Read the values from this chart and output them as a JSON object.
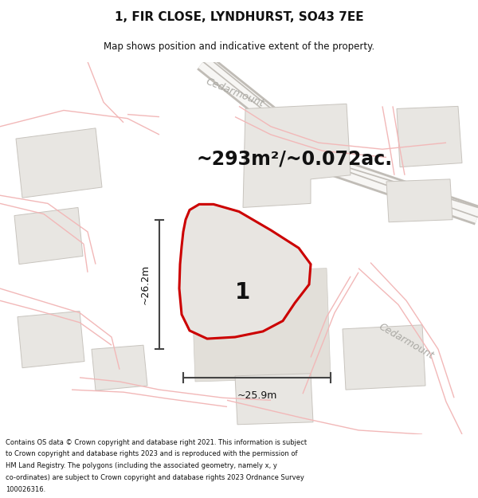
{
  "title": "1, FIR CLOSE, LYNDHURST, SO43 7EE",
  "subtitle": "Map shows position and indicative extent of the property.",
  "area_text": "~293m²/~0.072ac.",
  "dim_h": "~25.9m",
  "dim_v": "~26.2m",
  "prop_label": "1",
  "street_tl": "Cedarmount",
  "street_br": "Cedarmount",
  "footer_lines": [
    "Contains OS data © Crown copyright and database right 2021. This information is subject",
    "to Crown copyright and database rights 2023 and is reproduced with the permission of",
    "HM Land Registry. The polygons (including the associated geometry, namely x, y",
    "co-ordinates) are subject to Crown copyright and database rights 2023 Ordnance Survey",
    "100026316."
  ],
  "bg": "#f7f6f4",
  "building_fc": "#e8e6e2",
  "building_ec": "#c8c4be",
  "road_pink": "#f2b8b8",
  "road_gray": "#c0bcb6",
  "prop_fc": "#e8e5e1",
  "prop_ec": "#cc0000",
  "dim_color": "#444444",
  "text_dark": "#111111",
  "text_street": "#aaa9a4"
}
